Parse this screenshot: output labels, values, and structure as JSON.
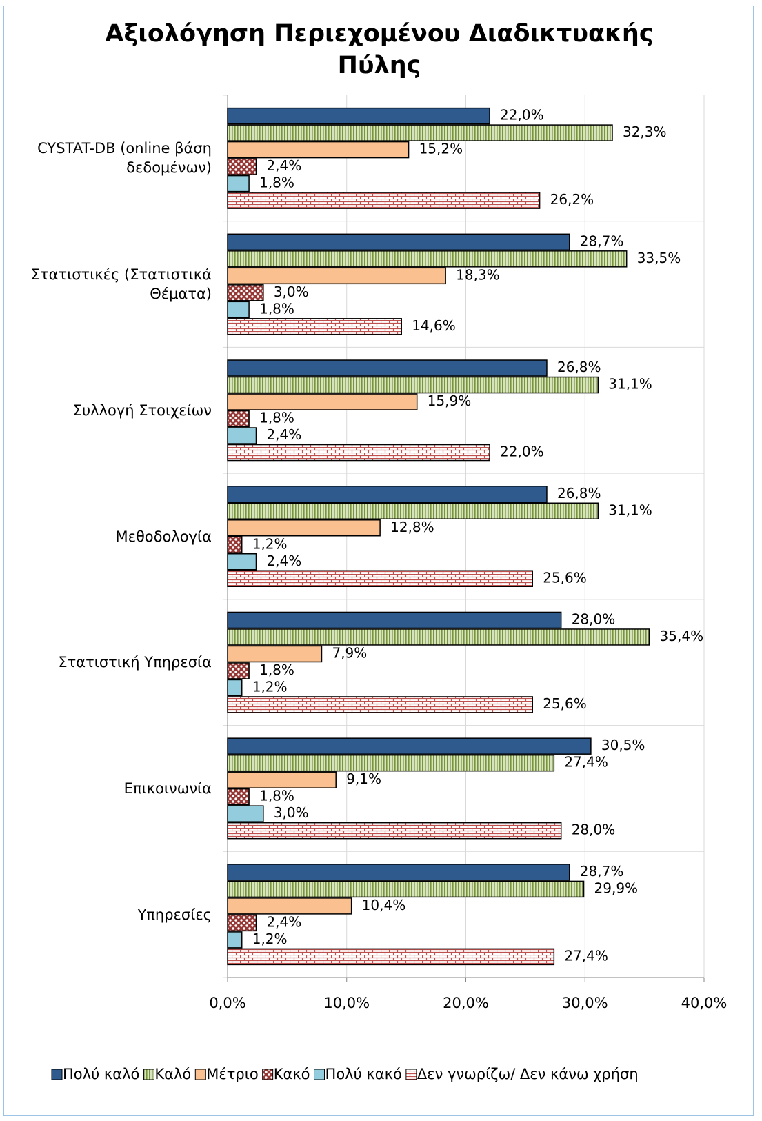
{
  "chart_data": {
    "type": "bar",
    "orientation": "horizontal",
    "title": "Αξιολόγηση Περιεχομένου Διαδικτυακής Πύλης",
    "categories": [
      "CYSTAT-DB (online βάση δεδομένων)",
      "Στατιστικές (Στατιστικά Θέματα)",
      "Συλλογή Στοιχείων",
      "Μεθοδολογία",
      "Στατιστική Υπηρεσία",
      "Επικοινωνία",
      "Υπηρεσίες"
    ],
    "series": [
      {
        "name": "Πολύ καλό",
        "color": "#2e5a8e",
        "values": [
          22.0,
          28.7,
          26.8,
          26.8,
          28.0,
          30.5,
          28.7
        ],
        "value_labels": [
          "22,0%",
          "28,7%",
          "26,8%",
          "26,8%",
          "28,0%",
          "30,5%",
          "28,7%"
        ]
      },
      {
        "name": "Καλό",
        "color": "#77933c",
        "values": [
          32.3,
          33.5,
          31.1,
          31.1,
          35.4,
          27.4,
          29.9
        ],
        "value_labels": [
          "32,3%",
          "33,5%",
          "31,1%",
          "31,1%",
          "35,4%",
          "27,4%",
          "29,9%"
        ]
      },
      {
        "name": "Μέτριο",
        "color": "#fac090",
        "values": [
          15.2,
          18.3,
          15.9,
          12.8,
          7.9,
          9.1,
          10.4
        ],
        "value_labels": [
          "15,2%",
          "18,3%",
          "15,9%",
          "12,8%",
          "7,9%",
          "9,1%",
          "10,4%"
        ]
      },
      {
        "name": "Κακό",
        "color": "#953735",
        "values": [
          2.4,
          3.0,
          1.8,
          1.2,
          1.8,
          1.8,
          2.4
        ],
        "value_labels": [
          "2,4%",
          "3,0%",
          "1,8%",
          "1,2%",
          "1,8%",
          "1,8%",
          "2,4%"
        ]
      },
      {
        "name": "Πολύ κακό",
        "color": "#93cddd",
        "values": [
          1.8,
          1.8,
          2.4,
          2.4,
          1.2,
          3.0,
          1.2
        ],
        "value_labels": [
          "1,8%",
          "1,8%",
          "2,4%",
          "2,4%",
          "1,2%",
          "3,0%",
          "1,2%"
        ]
      },
      {
        "name": "Δεν γνωρίζω/ Δεν κάνω χρήση",
        "color": "#c0504d",
        "values": [
          26.2,
          14.6,
          22.0,
          25.6,
          25.6,
          28.0,
          27.4
        ],
        "value_labels": [
          "26,2%",
          "14,6%",
          "22,0%",
          "25,6%",
          "25,6%",
          "28,0%",
          "27,4%"
        ]
      }
    ],
    "xlim": [
      0,
      40
    ],
    "xticks": [
      {
        "value": 0,
        "label": "0,0%"
      },
      {
        "value": 10,
        "label": "10,0%"
      },
      {
        "value": 20,
        "label": "20,0%"
      },
      {
        "value": 30,
        "label": "30,0%"
      },
      {
        "value": 40,
        "label": "40,0%"
      }
    ],
    "grid": true,
    "legend": "bottom"
  }
}
